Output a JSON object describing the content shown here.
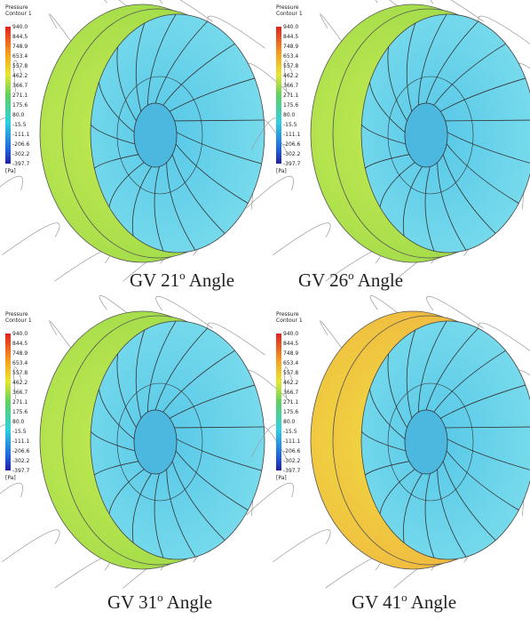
{
  "legend": {
    "title": "Pressure",
    "subtitle": "Contour 1",
    "values": [
      "940.0",
      "844.5",
      "748.9",
      "653.4",
      "557.8",
      "462.2",
      "366.7",
      "271.1",
      "175.6",
      "80.0",
      "-15.5",
      "-111.1",
      "-206.6",
      "-302.2",
      "-397.7"
    ],
    "unit": "[Pa]"
  },
  "panels": [
    {
      "caption": {
        "prefix": "GV 21",
        "degree": "o",
        "suffix": " Angle"
      }
    },
    {
      "caption": {
        "prefix": "GV 26",
        "degree": "o",
        "suffix": " Angle"
      }
    },
    {
      "caption": {
        "prefix": "GV 31",
        "degree": "o",
        "suffix": " Angle"
      }
    },
    {
      "caption": {
        "prefix": "GV 41",
        "degree": "o",
        "suffix": " Angle"
      }
    }
  ]
}
